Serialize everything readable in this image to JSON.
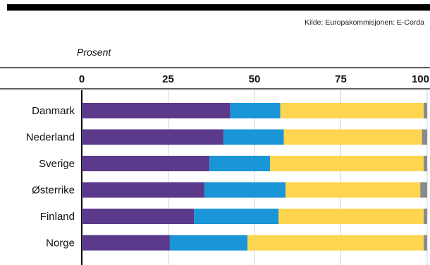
{
  "source": "Kilde: Europakommisjonen: E-Corda",
  "chart_data": {
    "type": "bar",
    "orientation": "horizontal",
    "stacked": true,
    "title": "",
    "xlabel": "Prosent",
    "ylabel": "",
    "xlim": [
      0,
      100
    ],
    "ticks": [
      "0",
      "25",
      "50",
      "75",
      "100"
    ],
    "grid": true,
    "categories": [
      "Danmark",
      "Nederland",
      "Sverige",
      "Østerrike",
      "Finland",
      "Norge"
    ],
    "series": [
      {
        "color": "#5b3a8c",
        "values": [
          43,
          41,
          37,
          35.5,
          32.5,
          25.5
        ]
      },
      {
        "color": "#1a96d8",
        "values": [
          14.5,
          17.5,
          17.5,
          23.5,
          24.5,
          22.5
        ]
      },
      {
        "color": "#fdd54f",
        "values": [
          41.5,
          40,
          44.5,
          39,
          42,
          51
        ]
      },
      {
        "color": "#8a8a8a",
        "values": [
          1,
          1.5,
          1,
          2,
          1,
          1
        ]
      }
    ]
  }
}
